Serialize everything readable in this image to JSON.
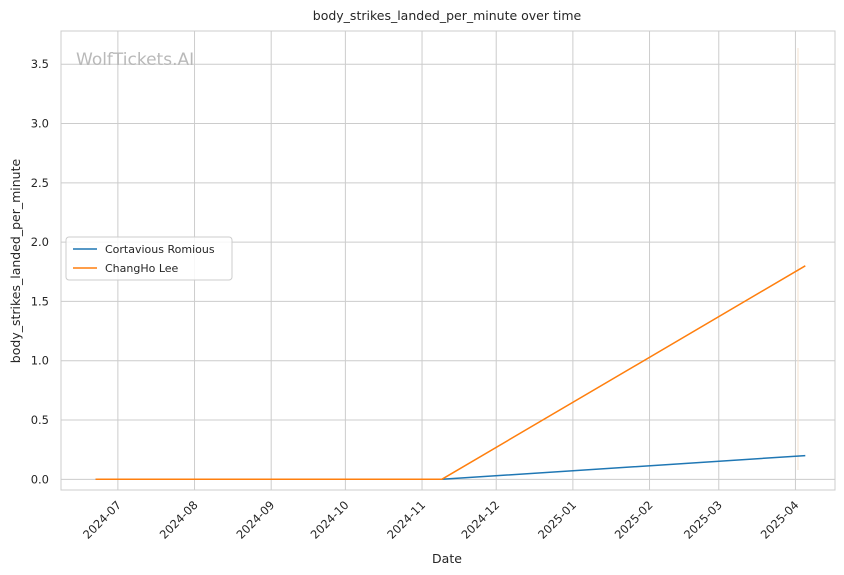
{
  "chart_data": {
    "type": "line",
    "title": "body_strikes_landed_per_minute over time",
    "xlabel": "Date",
    "ylabel": "body_strikes_landed_per_minute",
    "watermark": "WolfTickets.AI",
    "x_ticks": [
      "2024-07",
      "2024-08",
      "2024-09",
      "2024-10",
      "2024-11",
      "2024-12",
      "2025-01",
      "2025-02",
      "2025-03",
      "2025-04"
    ],
    "y_ticks": [
      "0.0",
      "0.5",
      "1.0",
      "1.5",
      "2.0",
      "2.5",
      "3.0",
      "3.5"
    ],
    "xlim": [
      "2024-06-08",
      "2025-04-17"
    ],
    "ylim": [
      -0.09,
      3.78
    ],
    "grid": true,
    "legend_position": "center-left",
    "series": [
      {
        "name": "Cortavious Romious",
        "color": "#1f77b4",
        "points": [
          {
            "x": "2024-06-22",
            "y": 0.0
          },
          {
            "x": "2024-11-09",
            "y": 0.0
          },
          {
            "x": "2025-04-05",
            "y": 0.2
          }
        ]
      },
      {
        "name": "ChangHo Lee",
        "color": "#ff7f0e",
        "points": [
          {
            "x": "2024-06-22",
            "y": 0.0
          },
          {
            "x": "2024-11-09",
            "y": 0.0
          },
          {
            "x": "2025-04-05",
            "y": 1.8
          }
        ]
      }
    ]
  }
}
